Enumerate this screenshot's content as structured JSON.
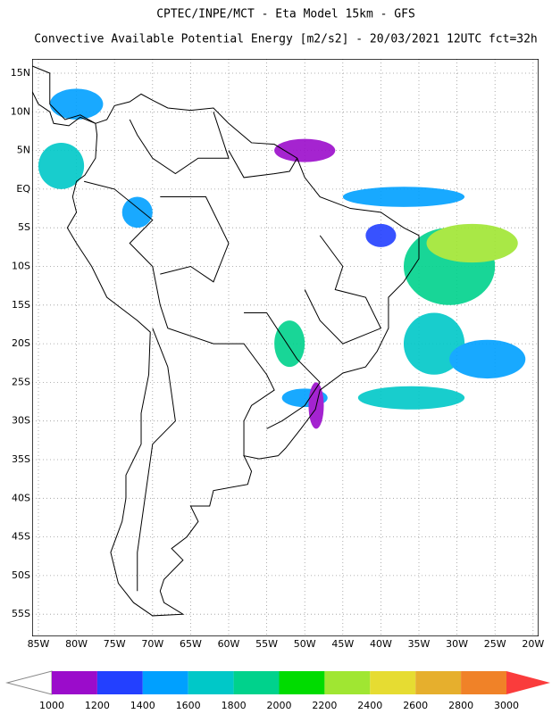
{
  "header": {
    "title": "CPTEC/INPE/MCT -  Eta Model 15km - GFS",
    "subtitle": "Convective Available Potential Energy [m2/s2] - 20/03/2021 12UTC fct=32h"
  },
  "map": {
    "lat_labels": [
      "15N",
      "10N",
      "5N",
      "EQ",
      "5S",
      "10S",
      "15S",
      "20S",
      "25S",
      "30S",
      "35S",
      "40S",
      "45S",
      "50S",
      "55S"
    ],
    "lon_labels": [
      "85W",
      "80W",
      "75W",
      "70W",
      "65W",
      "60W",
      "55W",
      "50W",
      "45W",
      "40W",
      "35W",
      "30W",
      "25W",
      "20W"
    ]
  },
  "colorbar": {
    "levels": [
      "1000",
      "1200",
      "1400",
      "1600",
      "1800",
      "2000",
      "2200",
      "2400",
      "2600",
      "2800",
      "3000"
    ],
    "under_color": "#ffffff",
    "colors": [
      "#9b0ccb",
      "#2340ff",
      "#00a0ff",
      "#00c8c8",
      "#00d28c",
      "#00dc00",
      "#a0e632",
      "#e6dc32",
      "#e6af2d",
      "#f08228",
      "#fa3c3c"
    ]
  }
}
